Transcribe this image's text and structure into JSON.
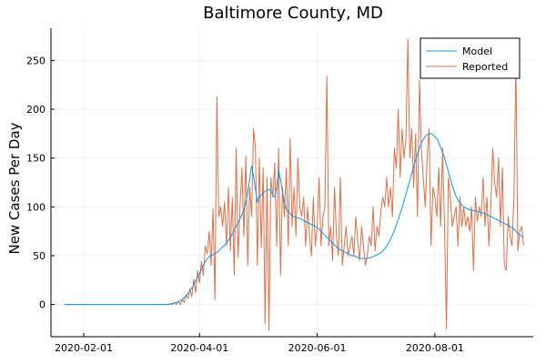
{
  "chart_data": {
    "type": "line",
    "title": "Baltimore County, MD",
    "xlabel": "",
    "ylabel": "New Cases Per Day",
    "x_start": "2020-01-22",
    "xlim": [
      "2020-01-15",
      "2020-09-21"
    ],
    "ylim": [
      -33,
      283
    ],
    "x_ticks": [
      "2020-02-01",
      "2020-04-01",
      "2020-06-01",
      "2020-08-01"
    ],
    "y_ticks": [
      0,
      50,
      100,
      150,
      200,
      250
    ],
    "grid": true,
    "legend_position": "top-right",
    "series": [
      {
        "name": "Model",
        "color": "#009af9",
        "values": [
          0,
          0,
          0,
          0,
          0,
          0,
          0,
          0,
          0,
          0,
          0,
          0,
          0,
          0,
          0,
          0,
          0,
          0,
          0,
          0,
          0,
          0,
          0,
          0,
          0,
          0,
          0,
          0,
          0,
          0,
          0,
          0,
          0,
          0,
          0,
          0,
          0,
          0,
          0,
          0,
          0,
          0,
          0,
          0,
          0,
          0,
          0,
          0,
          0,
          0,
          0,
          0,
          0,
          0,
          0,
          0.5,
          1,
          1.5,
          2,
          3,
          4,
          5,
          7,
          9,
          11,
          14,
          17,
          20,
          24,
          28,
          32,
          36,
          40,
          44,
          47,
          49,
          50,
          51,
          52,
          53,
          55,
          57,
          59,
          61,
          63,
          66,
          69,
          72,
          76,
          80,
          84,
          88,
          92,
          97,
          104,
          115,
          128,
          142,
          132,
          118,
          105,
          110,
          112,
          114,
          116,
          117,
          118,
          116,
          112,
          110,
          120,
          138,
          128,
          116,
          105,
          98,
          95,
          93,
          91,
          90,
          89,
          89,
          88,
          87,
          86,
          85,
          84,
          83,
          82,
          81,
          80,
          79,
          77,
          75,
          73,
          71,
          69,
          67,
          65,
          63,
          61,
          59,
          57,
          56,
          55,
          54,
          53,
          52,
          51,
          50,
          50,
          49,
          48,
          48,
          47,
          47,
          47,
          47,
          48,
          48,
          49,
          50,
          51,
          52,
          53,
          55,
          57,
          60,
          63,
          67,
          71,
          76,
          81,
          87,
          93,
          99,
          106,
          113,
          120,
          127,
          134,
          141,
          148,
          154,
          160,
          165,
          169,
          172,
          174,
          175,
          175,
          174,
          172,
          170,
          166,
          161,
          156,
          150,
          143,
          136,
          129,
          122,
          116,
          111,
          107,
          104,
          102,
          100,
          99,
          98,
          97,
          97,
          96,
          96,
          95,
          95,
          94,
          94,
          93,
          92,
          91,
          90,
          89,
          88,
          87,
          86,
          85,
          84,
          83,
          82,
          81,
          80,
          79,
          77,
          75,
          73,
          71,
          70,
          69
        ]
      },
      {
        "name": "Reported",
        "color": "#e26f46",
        "values": [
          0,
          0,
          0,
          0,
          0,
          0,
          0,
          0,
          0,
          0,
          0,
          0,
          0,
          0,
          0,
          0,
          0,
          0,
          0,
          0,
          0,
          0,
          0,
          0,
          0,
          0,
          0,
          0,
          0,
          0,
          0,
          0,
          0,
          0,
          0,
          0,
          0,
          0,
          0,
          0,
          0,
          0,
          0,
          0,
          0,
          0,
          0,
          0,
          0,
          0,
          0,
          0,
          0,
          0,
          0,
          1,
          0,
          2,
          0,
          3,
          0,
          5,
          2,
          10,
          6,
          16,
          8,
          26,
          12,
          35,
          22,
          44,
          30,
          60,
          52,
          75,
          40,
          98,
          5,
          213,
          90,
          100,
          80,
          105,
          60,
          120,
          55,
          110,
          30,
          160,
          48,
          100,
          140,
          70,
          152,
          40,
          120,
          90,
          180,
          160,
          40,
          150,
          58,
          140,
          -20,
          130,
          -27,
          130,
          110,
          145,
          60,
          160,
          30,
          120,
          90,
          140,
          60,
          170,
          80,
          120,
          70,
          150,
          100,
          90,
          110,
          60,
          100,
          70,
          50,
          110,
          60,
          80,
          130,
          60,
          90,
          100,
          234,
          60,
          80,
          45,
          120,
          70,
          50,
          130,
          40,
          60,
          80,
          50,
          60,
          70,
          50,
          90,
          65,
          45,
          80,
          60,
          40,
          50,
          70,
          60,
          100,
          55,
          80,
          70,
          95,
          110,
          100,
          130,
          100,
          120,
          90,
          160,
          140,
          200,
          130,
          180,
          150,
          170,
          272,
          150,
          180,
          120,
          175,
          90,
          230,
          160,
          130,
          100,
          150,
          180,
          60,
          120,
          110,
          90,
          140,
          80,
          160,
          80,
          -25,
          130,
          110,
          80,
          90,
          100,
          60,
          110,
          80,
          100,
          80,
          90,
          75,
          100,
          35,
          110,
          85,
          100,
          90,
          130,
          80,
          110,
          60,
          100,
          160,
          125,
          110,
          150,
          80,
          140,
          40,
          35,
          90,
          70,
          60,
          110,
          250,
          55,
          75,
          80,
          60
        ]
      }
    ]
  }
}
